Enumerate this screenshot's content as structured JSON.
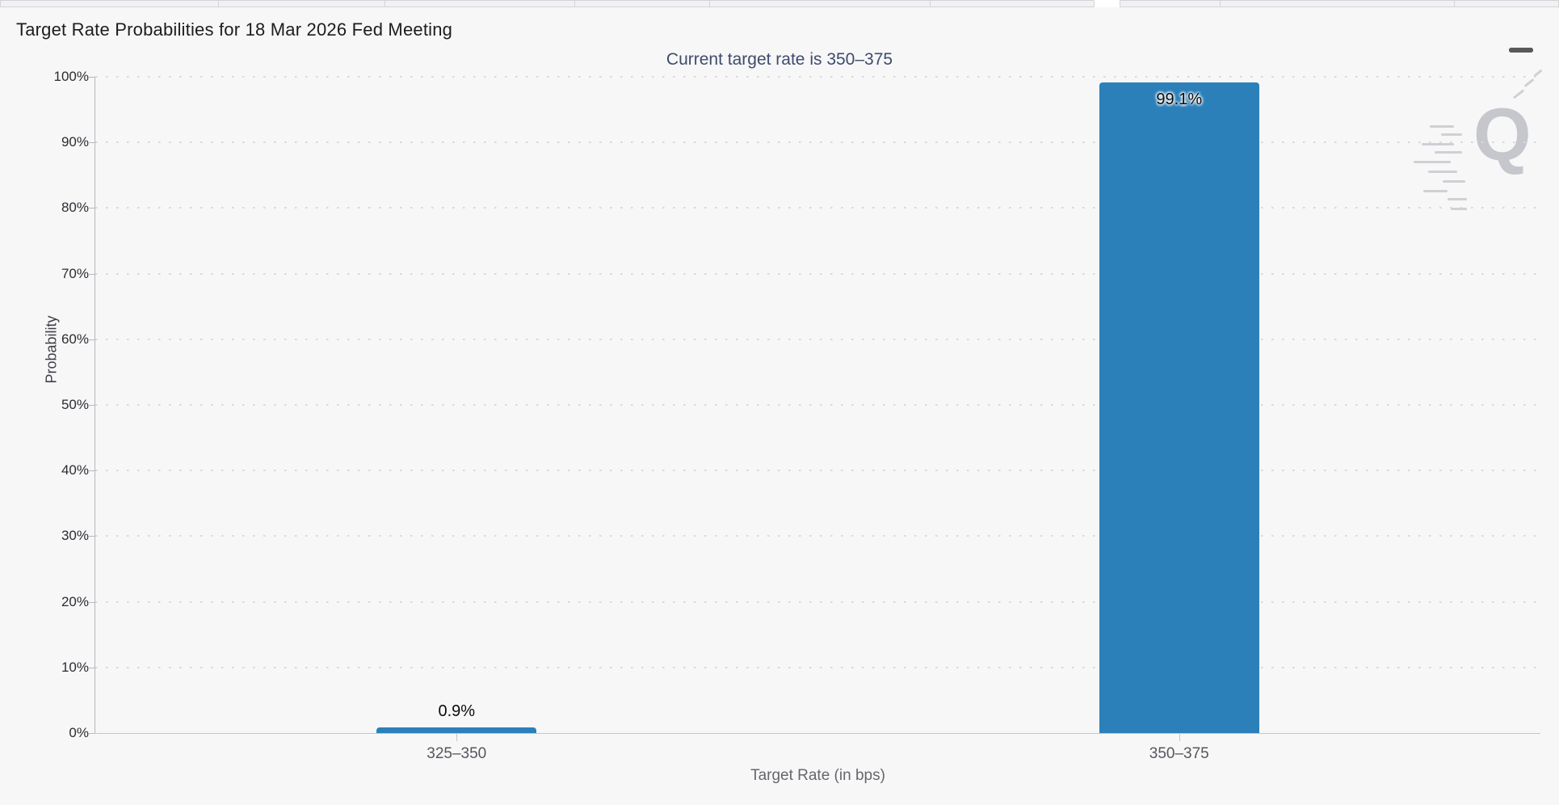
{
  "tabstrip": {
    "note": "row of cut-off meeting-date tabs, one active (white)"
  },
  "header": {
    "title": "Target Rate Probabilities for 18 Mar 2026 Fed Meeting",
    "subtitle": "Current target rate is 350–375",
    "menu_icon": "hamburger-menu-icon"
  },
  "chart_data": {
    "type": "bar",
    "title": "Target Rate Probabilities for 18 Mar 2026 Fed Meeting",
    "subtitle": "Current target rate is 350–375",
    "categories": [
      "325–350",
      "350–375"
    ],
    "values": [
      0.9,
      99.1
    ],
    "value_labels": [
      "0.9%",
      "99.1%"
    ],
    "xlabel": "Target Rate (in bps)",
    "ylabel": "Probability",
    "ylim": [
      0,
      100
    ],
    "y_tick_step": 10,
    "y_tick_suffix": "%",
    "bar_color": "#2b80b9",
    "grid": "horizontal-dotted",
    "legend_position": "none"
  },
  "watermark": {
    "letter": "Q",
    "name": "quikstrike-logo-watermark"
  }
}
